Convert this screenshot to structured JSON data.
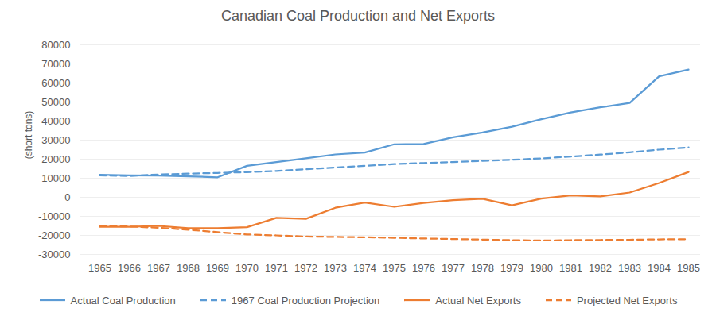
{
  "chart_data": {
    "type": "line",
    "title": "Canadian Coal Production and Net Exports",
    "y_label": "(short tons)",
    "x": [
      1965,
      1966,
      1967,
      1968,
      1969,
      1970,
      1971,
      1972,
      1973,
      1974,
      1975,
      1976,
      1977,
      1978,
      1979,
      1980,
      1981,
      1982,
      1983,
      1984,
      1985
    ],
    "series": [
      {
        "name": "Actual Coal Production",
        "color": "#5b9bd5",
        "line_style": "solid",
        "values": [
          11800,
          11500,
          11400,
          11000,
          10500,
          16500,
          18500,
          20500,
          22500,
          23500,
          27800,
          28000,
          31500,
          34000,
          37000,
          41000,
          44500,
          47200,
          49500,
          63500,
          67000
        ]
      },
      {
        "name": "1967 Coal Production Projection",
        "color": "#5b9bd5",
        "line_style": "dashed",
        "values": [
          11500,
          11200,
          12000,
          12400,
          12800,
          13200,
          13800,
          14700,
          15600,
          16500,
          17400,
          18000,
          18500,
          19100,
          19700,
          20400,
          21400,
          22400,
          23600,
          25000,
          26200
        ]
      },
      {
        "name": "Actual Net Exports",
        "color": "#ed7d31",
        "line_style": "solid",
        "values": [
          -15500,
          -15500,
          -15000,
          -16200,
          -16200,
          -15700,
          -10800,
          -11300,
          -5500,
          -2800,
          -5000,
          -3000,
          -1500,
          -800,
          -4200,
          -700,
          1000,
          500,
          2500,
          7500,
          13300
        ]
      },
      {
        "name": "Projected Net Exports",
        "color": "#ed7d31",
        "line_style": "dashed",
        "values": [
          -15000,
          -15300,
          -16000,
          -17000,
          -18300,
          -19500,
          -20000,
          -20600,
          -20800,
          -21000,
          -21300,
          -21600,
          -21900,
          -22200,
          -22500,
          -22700,
          -22500,
          -22400,
          -22300,
          -22100,
          -22000
        ]
      }
    ],
    "xlim": [
      1965,
      1985
    ],
    "xticks": [
      1965,
      1966,
      1967,
      1968,
      1969,
      1970,
      1971,
      1972,
      1973,
      1974,
      1975,
      1976,
      1977,
      1978,
      1979,
      1980,
      1981,
      1982,
      1983,
      1984,
      1985
    ],
    "ylim": [
      -30000,
      80000
    ],
    "yticks": [
      -30000,
      -20000,
      -10000,
      0,
      10000,
      20000,
      30000,
      40000,
      50000,
      60000,
      70000,
      80000
    ],
    "grid": true,
    "legend": "bottom"
  }
}
